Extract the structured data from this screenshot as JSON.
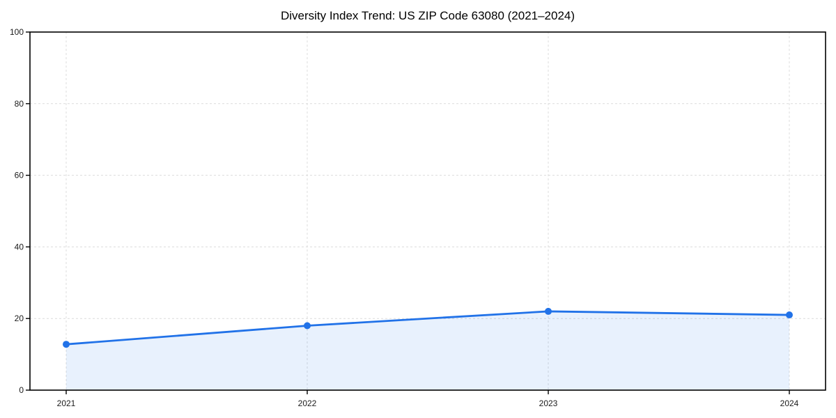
{
  "figure": {
    "background": "#ffffff"
  },
  "chart_data": {
    "type": "area",
    "title": "Diversity Index Trend: US ZIP Code 63080 (2021–2024)",
    "x": [
      "2021",
      "2022",
      "2023",
      "2024"
    ],
    "series": [
      {
        "name": "Diversity Index",
        "values": [
          12.8,
          18,
          22,
          21
        ]
      }
    ],
    "ylim": [
      0,
      100
    ],
    "yticks": [
      0,
      20,
      40,
      60,
      80,
      100
    ],
    "xlabel": "",
    "ylabel": "",
    "grid": "dashed",
    "legend": "none",
    "marker": "circle",
    "line_color": "#2172e8",
    "fill_color": "rgba(33,114,232,0.10)",
    "spine_color": "#000000",
    "grid_color": "#dcdcdc",
    "tick_label_color": "#1a1a1a"
  }
}
